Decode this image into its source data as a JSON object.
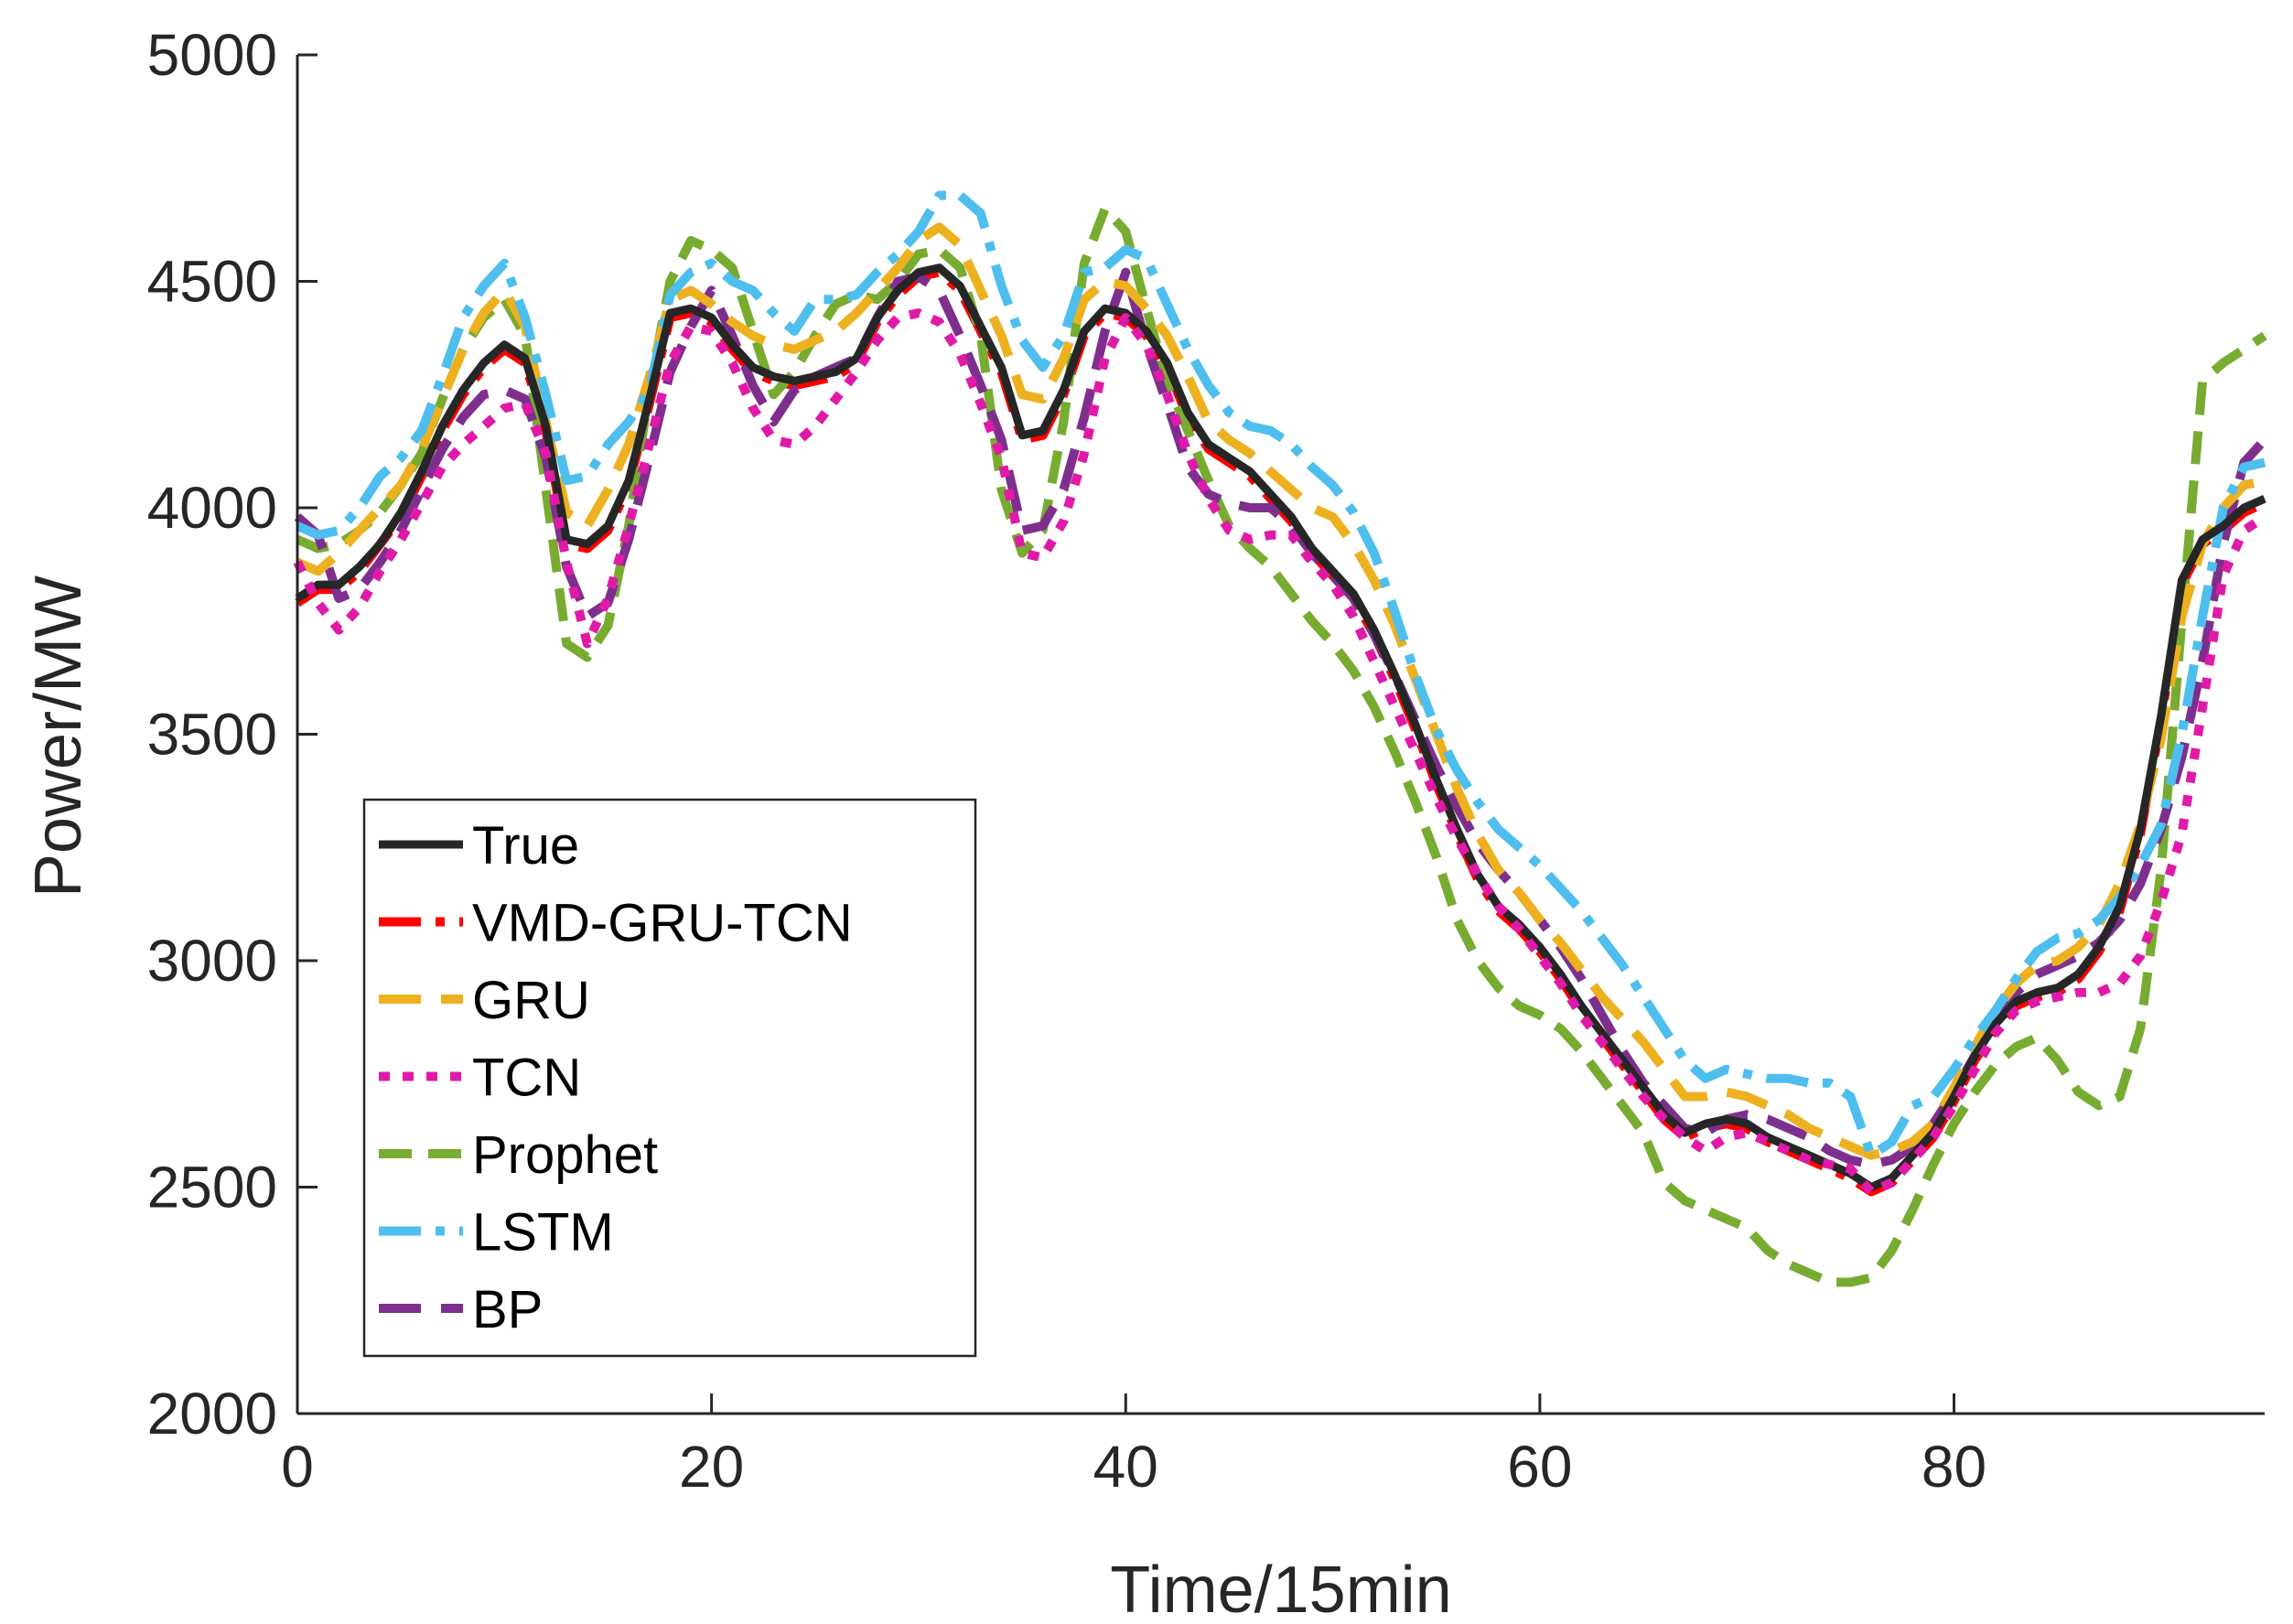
{
  "chart_data": {
    "type": "line",
    "title": "",
    "xlabel": "Time/15min",
    "ylabel": "Power/MW",
    "xlim": [
      0,
      95
    ],
    "ylim": [
      2000,
      5000
    ],
    "xticks": [
      0,
      20,
      40,
      60,
      80
    ],
    "yticks": [
      2000,
      2500,
      3000,
      3500,
      4000,
      4500,
      5000
    ],
    "grid": false,
    "legend_position": "bottom-left",
    "x": [
      0,
      1,
      2,
      3,
      4,
      5,
      6,
      7,
      8,
      9,
      10,
      11,
      12,
      13,
      14,
      15,
      16,
      17,
      18,
      19,
      20,
      21,
      22,
      23,
      24,
      25,
      26,
      27,
      28,
      29,
      30,
      31,
      32,
      33,
      34,
      35,
      36,
      37,
      38,
      39,
      40,
      41,
      42,
      43,
      44,
      45,
      46,
      47,
      48,
      49,
      50,
      51,
      52,
      53,
      54,
      55,
      56,
      57,
      58,
      59,
      60,
      61,
      62,
      63,
      64,
      65,
      66,
      67,
      68,
      69,
      70,
      71,
      72,
      73,
      74,
      75,
      76,
      77,
      78,
      79,
      80,
      81,
      82,
      83,
      84,
      85,
      86,
      87,
      88,
      89,
      90,
      91,
      92,
      93,
      94,
      95
    ],
    "series": [
      {
        "name": "True",
        "color": "#262626",
        "dash": "solid",
        "values": [
          3800,
          3830,
          3830,
          3870,
          3920,
          3990,
          4080,
          4180,
          4260,
          4320,
          4360,
          4330,
          4180,
          3930,
          3920,
          3960,
          4060,
          4240,
          4430,
          4440,
          4420,
          4360,
          4310,
          4290,
          4280,
          4290,
          4300,
          4330,
          4420,
          4480,
          4520,
          4530,
          4490,
          4400,
          4310,
          4160,
          4170,
          4260,
          4390,
          4440,
          4430,
          4390,
          4320,
          4210,
          4140,
          4110,
          4080,
          4030,
          3980,
          3910,
          3860,
          3810,
          3730,
          3630,
          3520,
          3400,
          3290,
          3190,
          3120,
          3080,
          3030,
          2970,
          2900,
          2840,
          2780,
          2720,
          2660,
          2620,
          2640,
          2650,
          2640,
          2610,
          2590,
          2570,
          2550,
          2530,
          2500,
          2520,
          2570,
          2620,
          2700,
          2790,
          2860,
          2910,
          2930,
          2940,
          2970,
          3030,
          3120,
          3290,
          3540,
          3840,
          3930,
          3960,
          4000,
          4020
        ]
      },
      {
        "name": "VMD-GRU-TCN",
        "color": "#ff0000",
        "dash": "dashdot",
        "values": [
          3790,
          3820,
          3820,
          3860,
          3920,
          3980,
          4070,
          4170,
          4250,
          4310,
          4350,
          4320,
          4170,
          3920,
          3910,
          3950,
          4050,
          4230,
          4420,
          4430,
          4410,
          4350,
          4300,
          4280,
          4270,
          4280,
          4290,
          4320,
          4410,
          4470,
          4510,
          4520,
          4480,
          4390,
          4300,
          4150,
          4160,
          4250,
          4380,
          4430,
          4420,
          4380,
          4310,
          4200,
          4130,
          4100,
          4070,
          4020,
          3970,
          3900,
          3850,
          3800,
          3720,
          3620,
          3510,
          3390,
          3280,
          3180,
          3110,
          3070,
          3020,
          2960,
          2890,
          2830,
          2770,
          2710,
          2650,
          2610,
          2630,
          2640,
          2630,
          2600,
          2580,
          2560,
          2540,
          2520,
          2490,
          2510,
          2560,
          2610,
          2690,
          2780,
          2850,
          2900,
          2920,
          2930,
          2960,
          3020,
          3110,
          3280,
          3530,
          3830,
          3920,
          3950,
          3990,
          4010
        ]
      },
      {
        "name": "GRU",
        "color": "#edb120",
        "dash": "longdash",
        "values": [
          3880,
          3860,
          3900,
          3950,
          4000,
          4050,
          4130,
          4240,
          4350,
          4430,
          4480,
          4400,
          4190,
          3990,
          3960,
          4040,
          4140,
          4290,
          4460,
          4480,
          4450,
          4410,
          4380,
          4360,
          4350,
          4370,
          4390,
          4430,
          4480,
          4530,
          4590,
          4620,
          4580,
          4480,
          4380,
          4250,
          4240,
          4330,
          4460,
          4500,
          4490,
          4440,
          4380,
          4290,
          4190,
          4150,
          4120,
          4080,
          4040,
          4000,
          3980,
          3920,
          3840,
          3740,
          3620,
          3500,
          3380,
          3280,
          3200,
          3150,
          3090,
          3040,
          2980,
          2920,
          2870,
          2820,
          2760,
          2700,
          2700,
          2710,
          2700,
          2680,
          2660,
          2630,
          2610,
          2590,
          2570,
          2580,
          2600,
          2640,
          2720,
          2810,
          2890,
          2950,
          2990,
          3000,
          3030,
          3080,
          3170,
          3300,
          3490,
          3760,
          3920,
          4000,
          4050,
          4060
        ]
      },
      {
        "name": "TCN",
        "color": "#e01aa8",
        "dash": "dotted",
        "values": [
          3880,
          3790,
          3730,
          3780,
          3860,
          3930,
          4010,
          4090,
          4140,
          4180,
          4220,
          4230,
          4120,
          3880,
          3700,
          3800,
          3960,
          4140,
          4320,
          4400,
          4390,
          4320,
          4220,
          4150,
          4140,
          4180,
          4240,
          4300,
          4370,
          4420,
          4430,
          4410,
          4340,
          4230,
          4110,
          3900,
          3890,
          3970,
          4120,
          4330,
          4420,
          4360,
          4250,
          4120,
          4020,
          3950,
          3930,
          3940,
          3940,
          3880,
          3830,
          3760,
          3660,
          3560,
          3460,
          3360,
          3270,
          3190,
          3120,
          3070,
          3010,
          2950,
          2880,
          2820,
          2760,
          2700,
          2650,
          2610,
          2580,
          2610,
          2620,
          2600,
          2580,
          2560,
          2550,
          2540,
          2490,
          2510,
          2560,
          2610,
          2680,
          2760,
          2840,
          2890,
          2910,
          2920,
          2930,
          2930,
          2950,
          3010,
          3130,
          3280,
          3560,
          3850,
          3950,
          3980
        ]
      },
      {
        "name": "Prophet",
        "color": "#77ac30",
        "dash": "dashed",
        "values": [
          3930,
          3910,
          3920,
          3950,
          3990,
          4050,
          4120,
          4240,
          4350,
          4420,
          4460,
          4380,
          4040,
          3700,
          3670,
          3740,
          3960,
          4260,
          4500,
          4590,
          4570,
          4530,
          4390,
          4250,
          4300,
          4380,
          4450,
          4470,
          4460,
          4500,
          4560,
          4570,
          4530,
          4380,
          4040,
          3900,
          3950,
          4190,
          4540,
          4660,
          4610,
          4440,
          4280,
          4170,
          4060,
          3960,
          3910,
          3870,
          3810,
          3750,
          3700,
          3640,
          3560,
          3460,
          3350,
          3230,
          3090,
          3000,
          2940,
          2900,
          2880,
          2850,
          2800,
          2740,
          2680,
          2620,
          2510,
          2470,
          2450,
          2430,
          2410,
          2360,
          2330,
          2310,
          2290,
          2290,
          2300,
          2360,
          2450,
          2550,
          2640,
          2710,
          2770,
          2810,
          2830,
          2780,
          2710,
          2680,
          2700,
          2850,
          3200,
          3750,
          4280,
          4320,
          4350,
          4380
        ]
      },
      {
        "name": "LSTM",
        "color": "#4dbeee",
        "dash": "dashdot",
        "values": [
          3960,
          3940,
          3950,
          4000,
          4070,
          4110,
          4170,
          4290,
          4420,
          4490,
          4540,
          4420,
          4250,
          4060,
          4070,
          4140,
          4190,
          4260,
          4470,
          4520,
          4540,
          4500,
          4480,
          4430,
          4390,
          4460,
          4460,
          4470,
          4520,
          4560,
          4610,
          4690,
          4690,
          4650,
          4490,
          4370,
          4310,
          4380,
          4520,
          4530,
          4570,
          4550,
          4450,
          4350,
          4270,
          4210,
          4180,
          4170,
          4140,
          4090,
          4050,
          3990,
          3900,
          3770,
          3630,
          3510,
          3420,
          3350,
          3290,
          3250,
          3210,
          3160,
          3110,
          3050,
          2990,
          2920,
          2850,
          2780,
          2740,
          2760,
          2750,
          2740,
          2740,
          2730,
          2730,
          2700,
          2570,
          2600,
          2680,
          2700,
          2760,
          2830,
          2890,
          2960,
          3020,
          3050,
          3060,
          3090,
          3140,
          3210,
          3300,
          3500,
          3760,
          4000,
          4090,
          4100
        ]
      },
      {
        "name": "BP",
        "color": "#7e2f8e",
        "dash": "longdash",
        "values": [
          3980,
          3940,
          3800,
          3820,
          3880,
          3950,
          4040,
          4130,
          4200,
          4250,
          4260,
          4240,
          4110,
          3870,
          3760,
          3790,
          3930,
          4110,
          4300,
          4400,
          4480,
          4380,
          4270,
          4190,
          4260,
          4290,
          4310,
          4330,
          4420,
          4500,
          4510,
          4480,
          4380,
          4270,
          4150,
          3950,
          3960,
          4040,
          4200,
          4390,
          4520,
          4360,
          4230,
          4090,
          4030,
          4010,
          4000,
          4000,
          3960,
          3900,
          3850,
          3800,
          3720,
          3630,
          3530,
          3430,
          3340,
          3260,
          3200,
          3150,
          3090,
          3030,
          2960,
          2880,
          2800,
          2730,
          2680,
          2630,
          2620,
          2650,
          2660,
          2650,
          2630,
          2610,
          2580,
          2560,
          2550,
          2560,
          2590,
          2640,
          2710,
          2790,
          2870,
          2930,
          2970,
          2990,
          3010,
          3040,
          3090,
          3170,
          3290,
          3450,
          3660,
          3920,
          4100,
          4150
        ]
      }
    ]
  }
}
